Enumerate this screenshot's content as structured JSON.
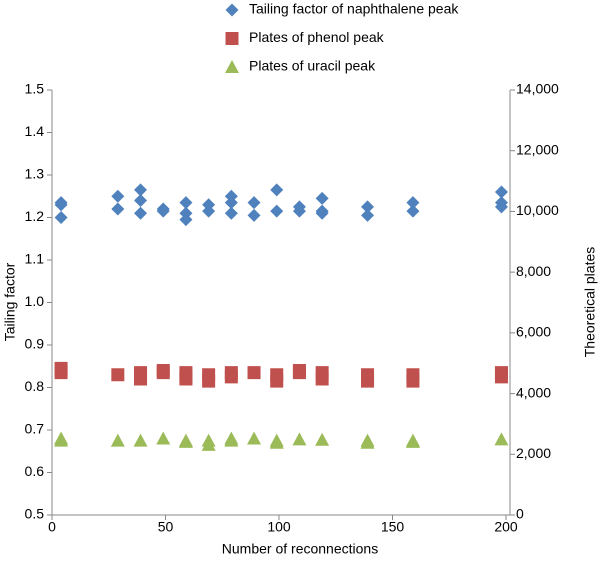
{
  "chart_data": {
    "type": "scatter",
    "xlabel": "Number of reconnections",
    "ylabel": "Tailing factor",
    "y2label": "Theoretical plates",
    "xlim": [
      0,
      200
    ],
    "xticks": [
      0,
      50,
      100,
      150,
      200
    ],
    "ylim": [
      0.5,
      1.5
    ],
    "yticks": [
      0.5,
      0.6,
      0.7,
      0.8,
      0.9,
      {
        "value": 1,
        "label": "1.0"
      },
      1.1,
      1.2,
      1.3,
      1.4,
      1.5
    ],
    "y2lim": [
      0,
      14000
    ],
    "y2ticks": [
      0,
      {
        "value": 2000,
        "label": "2,000"
      },
      {
        "value": 4000,
        "label": "4,000"
      },
      {
        "value": 6000,
        "label": "6,000"
      },
      {
        "value": 8000,
        "label": "8,000"
      },
      {
        "value": 10000,
        "label": "10,000"
      },
      {
        "value": 12000,
        "label": "12,000"
      },
      {
        "value": 14000,
        "label": "14,000"
      }
    ],
    "legend": "top",
    "series": [
      {
        "name": "Tailing factor of naphthalene peak",
        "color": "#4f81bd",
        "marker": "diamond",
        "axis": "y",
        "x": [
          4,
          4,
          4,
          29,
          29,
          39,
          39,
          39,
          49,
          49,
          59,
          59,
          59,
          69,
          69,
          79,
          79,
          79,
          89,
          89,
          99,
          99,
          109,
          109,
          119,
          119,
          119,
          139,
          139,
          159,
          159,
          198,
          198,
          198
        ],
        "values": [
          1.235,
          1.23,
          1.2,
          1.25,
          1.22,
          1.265,
          1.24,
          1.21,
          1.22,
          1.215,
          1.235,
          1.21,
          1.195,
          1.23,
          1.215,
          1.25,
          1.235,
          1.21,
          1.235,
          1.205,
          1.265,
          1.215,
          1.225,
          1.215,
          1.245,
          1.215,
          1.21,
          1.225,
          1.205,
          1.235,
          1.215,
          1.26,
          1.235,
          1.225
        ]
      },
      {
        "name": "Plates of phenol peak",
        "color": "#c0504d",
        "marker": "square",
        "axis": "y2",
        "x": [
          4,
          4,
          29,
          39,
          39,
          49,
          49,
          59,
          59,
          59,
          69,
          69,
          79,
          79,
          89,
          99,
          99,
          109,
          109,
          119,
          119,
          139,
          139,
          159,
          159,
          198,
          198
        ],
        "values": [
          4830,
          4690,
          4620,
          4690,
          4480,
          4760,
          4690,
          4690,
          4550,
          4480,
          4620,
          4410,
          4690,
          4550,
          4690,
          4620,
          4410,
          4760,
          4690,
          4690,
          4480,
          4620,
          4410,
          4620,
          4410,
          4690,
          4550
        ]
      },
      {
        "name": "Plates of uracil peak",
        "color": "#9bbb59",
        "marker": "triangle",
        "axis": "y2",
        "x": [
          4,
          4,
          29,
          39,
          49,
          59,
          59,
          69,
          69,
          79,
          79,
          89,
          99,
          99,
          109,
          119,
          139,
          139,
          159,
          159,
          198
        ],
        "values": [
          2520,
          2450,
          2450,
          2450,
          2520,
          2450,
          2408,
          2450,
          2310,
          2520,
          2450,
          2520,
          2450,
          2380,
          2492,
          2478,
          2450,
          2380,
          2450,
          2408,
          2492
        ]
      }
    ]
  }
}
